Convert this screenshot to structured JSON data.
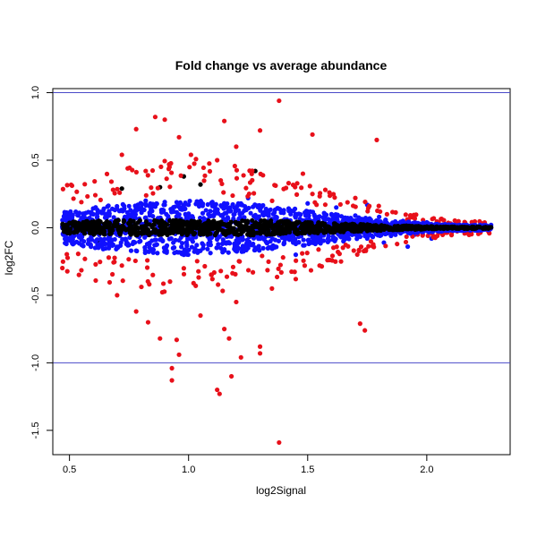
{
  "chart_data": {
    "type": "scatter",
    "title": "Fold change vs average abundance",
    "xlabel": "log2Signal",
    "ylabel": "log2FC",
    "xlim": [
      0.43,
      2.35
    ],
    "ylim": [
      -1.68,
      1.03
    ],
    "xticks": [
      "0.5",
      "1.0",
      "1.5",
      "2.0"
    ],
    "yticks": [
      "1.0",
      "0.5",
      "0.0",
      "-0.5",
      "-1.0",
      "-1.5"
    ],
    "grid": false,
    "reference_lines": [
      {
        "axis": "y",
        "value": 1.0,
        "color": "#4a4ac8"
      },
      {
        "axis": "y",
        "value": -1.0,
        "color": "#4a4ac8"
      }
    ],
    "series": [
      {
        "color": "#000000",
        "description_points": "near-zero fold change band",
        "points": [
          [
            0.47,
            0.01
          ],
          [
            0.5,
            0.0
          ],
          [
            0.52,
            -0.02
          ],
          [
            0.55,
            0.02
          ],
          [
            0.6,
            -0.01
          ],
          [
            0.65,
            0.03
          ],
          [
            0.7,
            -0.04
          ],
          [
            0.72,
            0.29
          ],
          [
            0.75,
            0.05
          ],
          [
            0.8,
            -0.05
          ],
          [
            0.85,
            0.02
          ],
          [
            0.88,
            0.3
          ],
          [
            0.9,
            -0.03
          ],
          [
            0.95,
            0.04
          ],
          [
            0.98,
            0.38
          ],
          [
            1.0,
            -0.02
          ],
          [
            1.05,
            0.03
          ],
          [
            1.1,
            -0.05
          ],
          [
            1.15,
            0.02
          ],
          [
            1.2,
            -0.03
          ],
          [
            1.25,
            0.04
          ],
          [
            1.3,
            -0.02
          ],
          [
            1.35,
            0.03
          ],
          [
            1.4,
            -0.04
          ],
          [
            1.45,
            0.02
          ],
          [
            1.5,
            -0.01
          ],
          [
            1.55,
            0.03
          ],
          [
            1.6,
            -0.02
          ],
          [
            1.65,
            0.01
          ],
          [
            1.7,
            -0.03
          ],
          [
            1.75,
            0.02
          ],
          [
            1.8,
            -0.01
          ],
          [
            1.85,
            0.02
          ],
          [
            1.9,
            -0.02
          ],
          [
            1.95,
            0.01
          ],
          [
            2.0,
            -0.01
          ],
          [
            2.05,
            0.02
          ],
          [
            2.1,
            -0.01
          ],
          [
            2.15,
            0.01
          ],
          [
            2.2,
            0.0
          ],
          [
            2.25,
            0.01
          ],
          [
            2.27,
            0.0
          ],
          [
            1.28,
            0.42
          ],
          [
            1.05,
            0.32
          ],
          [
            0.62,
            -0.09
          ],
          [
            1.12,
            -0.07
          ],
          [
            1.62,
            -0.03
          ]
        ]
      },
      {
        "color": "#1010ff",
        "description_points": "moderate fold change",
        "points": [
          [
            0.5,
            0.04
          ],
          [
            0.52,
            -0.06
          ],
          [
            0.55,
            0.07
          ],
          [
            0.58,
            -0.09
          ],
          [
            0.6,
            0.1
          ],
          [
            0.65,
            -0.12
          ],
          [
            0.68,
            0.14
          ],
          [
            0.7,
            -0.15
          ],
          [
            0.75,
            0.16
          ],
          [
            0.78,
            -0.17
          ],
          [
            0.8,
            0.18
          ],
          [
            0.85,
            -0.16
          ],
          [
            0.9,
            0.19
          ],
          [
            0.95,
            -0.18
          ],
          [
            1.0,
            0.17
          ],
          [
            1.05,
            -0.17
          ],
          [
            1.1,
            0.16
          ],
          [
            1.15,
            -0.16
          ],
          [
            1.2,
            0.15
          ],
          [
            1.25,
            -0.15
          ],
          [
            1.3,
            0.14
          ],
          [
            1.35,
            -0.14
          ],
          [
            1.4,
            0.13
          ],
          [
            1.45,
            -0.12
          ],
          [
            1.5,
            0.12
          ],
          [
            1.55,
            -0.11
          ],
          [
            1.6,
            0.1
          ],
          [
            1.65,
            -0.1
          ],
          [
            1.7,
            0.09
          ],
          [
            1.75,
            -0.08
          ],
          [
            1.8,
            0.08
          ],
          [
            1.85,
            -0.06
          ],
          [
            1.9,
            0.05
          ],
          [
            1.95,
            -0.05
          ],
          [
            2.0,
            0.04
          ],
          [
            2.05,
            -0.03
          ],
          [
            2.1,
            0.03
          ],
          [
            1.25,
            0.22
          ],
          [
            1.5,
            0.18
          ],
          [
            1.75,
            0.17
          ],
          [
            1.92,
            -0.14
          ],
          [
            2.02,
            -0.08
          ],
          [
            1.45,
            -0.2
          ],
          [
            0.98,
            -0.2
          ],
          [
            0.82,
            0.2
          ],
          [
            1.62,
            0.15
          ],
          [
            1.82,
            -0.11
          ]
        ]
      },
      {
        "color": "#e8101a",
        "description_points": "large fold change",
        "points": [
          [
            0.86,
            0.82
          ],
          [
            0.9,
            0.8
          ],
          [
            1.38,
            0.94
          ],
          [
            1.52,
            0.69
          ],
          [
            1.79,
            0.65
          ],
          [
            0.78,
            0.73
          ],
          [
            1.3,
            0.72
          ],
          [
            1.15,
            0.79
          ],
          [
            0.96,
            0.67
          ],
          [
            1.2,
            0.6
          ],
          [
            1.01,
            0.54
          ],
          [
            0.72,
            0.54
          ],
          [
            1.12,
            0.5
          ],
          [
            0.92,
            0.45
          ],
          [
            0.82,
            0.42
          ],
          [
            1.42,
            0.33
          ],
          [
            1.52,
            0.25
          ],
          [
            1.7,
            0.22
          ],
          [
            1.48,
            0.4
          ],
          [
            0.72,
            -0.28
          ],
          [
            0.85,
            -0.35
          ],
          [
            0.7,
            -0.5
          ],
          [
            0.78,
            -0.62
          ],
          [
            0.83,
            -0.7
          ],
          [
            0.88,
            -0.82
          ],
          [
            0.95,
            -0.83
          ],
          [
            1.05,
            -0.65
          ],
          [
            1.15,
            -0.75
          ],
          [
            1.17,
            -0.82
          ],
          [
            1.3,
            -0.88
          ],
          [
            1.3,
            -0.93
          ],
          [
            0.96,
            -0.94
          ],
          [
            0.93,
            -1.04
          ],
          [
            0.93,
            -1.13
          ],
          [
            1.18,
            -1.1
          ],
          [
            1.22,
            -0.96
          ],
          [
            1.12,
            -1.2
          ],
          [
            1.13,
            -1.23
          ],
          [
            1.38,
            -1.59
          ],
          [
            1.72,
            -0.71
          ],
          [
            1.74,
            -0.76
          ],
          [
            1.03,
            -0.43
          ],
          [
            1.2,
            -0.55
          ],
          [
            1.35,
            -0.45
          ],
          [
            0.98,
            -0.3
          ],
          [
            1.1,
            -0.38
          ],
          [
            1.27,
            -0.33
          ],
          [
            1.45,
            -0.38
          ],
          [
            1.55,
            -0.28
          ],
          [
            1.64,
            -0.25
          ]
        ]
      }
    ]
  }
}
